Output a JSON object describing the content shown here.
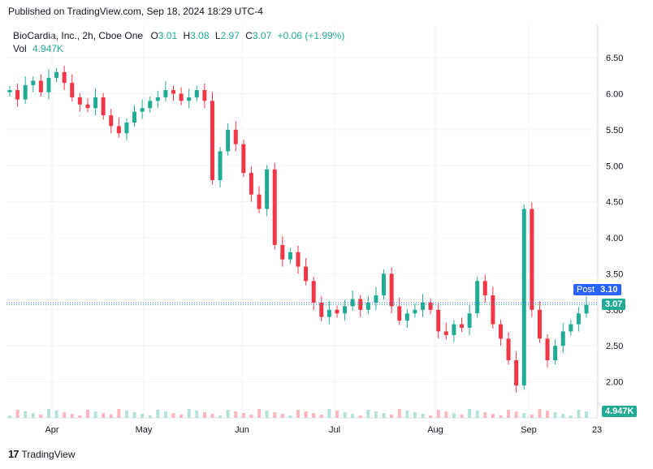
{
  "header": {
    "published": "Published on TradingView.com, Sep 18, 2024 18:29 UTC-4"
  },
  "legend": {
    "symbol": "BioCardia, Inc., 2h, Cboe One",
    "o_label": "O",
    "o_value": "3.01",
    "h_label": "H",
    "h_value": "3.08",
    "l_label": "L",
    "l_value": "2.97",
    "c_label": "C",
    "c_value": "3.07",
    "change": "+0.06 (+1.99%)",
    "vol_label": "Vol",
    "vol_value": "4.947K"
  },
  "price_tags": {
    "post_label": "Post",
    "post_value": "3.10",
    "last_value": "3.07",
    "volume_value": "4.947K"
  },
  "footer": {
    "brand": "TradingView"
  },
  "colors": {
    "up": "#22ab94",
    "down": "#f23645",
    "post": "#2962ff",
    "grid": "#f0f3fa"
  },
  "chart_data": {
    "type": "candlestick",
    "y_ticks": [
      "6.50",
      "6.00",
      "5.50",
      "5.00",
      "4.50",
      "4.00",
      "3.50",
      "3.00",
      "2.50",
      "2.00"
    ],
    "x_ticks": [
      "Apr",
      "May",
      "Jun",
      "Jul",
      "Aug",
      "Sep",
      "23"
    ],
    "ylim": [
      1.5,
      6.85
    ],
    "grid": true,
    "series": [
      {
        "name": "close",
        "values": [
          6.05,
          5.92,
          6.12,
          6.18,
          6.02,
          6.22,
          6.3,
          6.15,
          5.95,
          5.85,
          5.8,
          5.95,
          5.7,
          5.55,
          5.45,
          5.6,
          5.75,
          5.8,
          5.9,
          5.95,
          6.05,
          6.0,
          5.9,
          5.95,
          6.05,
          5.9,
          4.8,
          5.2,
          5.5,
          5.3,
          4.9,
          4.6,
          4.4,
          4.95,
          3.9,
          3.7,
          3.8,
          3.6,
          3.4,
          3.1,
          2.9,
          3.0,
          2.95,
          3.05,
          3.15,
          3.0,
          3.1,
          3.2,
          3.5,
          3.05,
          2.85,
          2.95,
          3.0,
          3.1,
          3.0,
          2.7,
          2.65,
          2.8,
          2.75,
          2.95,
          3.4,
          3.2,
          2.8,
          2.6,
          2.3,
          1.95,
          4.4,
          3.0,
          2.6,
          2.3,
          2.5,
          2.7,
          2.8,
          2.95,
          3.07
        ]
      }
    ],
    "volume_last": "4.947K"
  }
}
